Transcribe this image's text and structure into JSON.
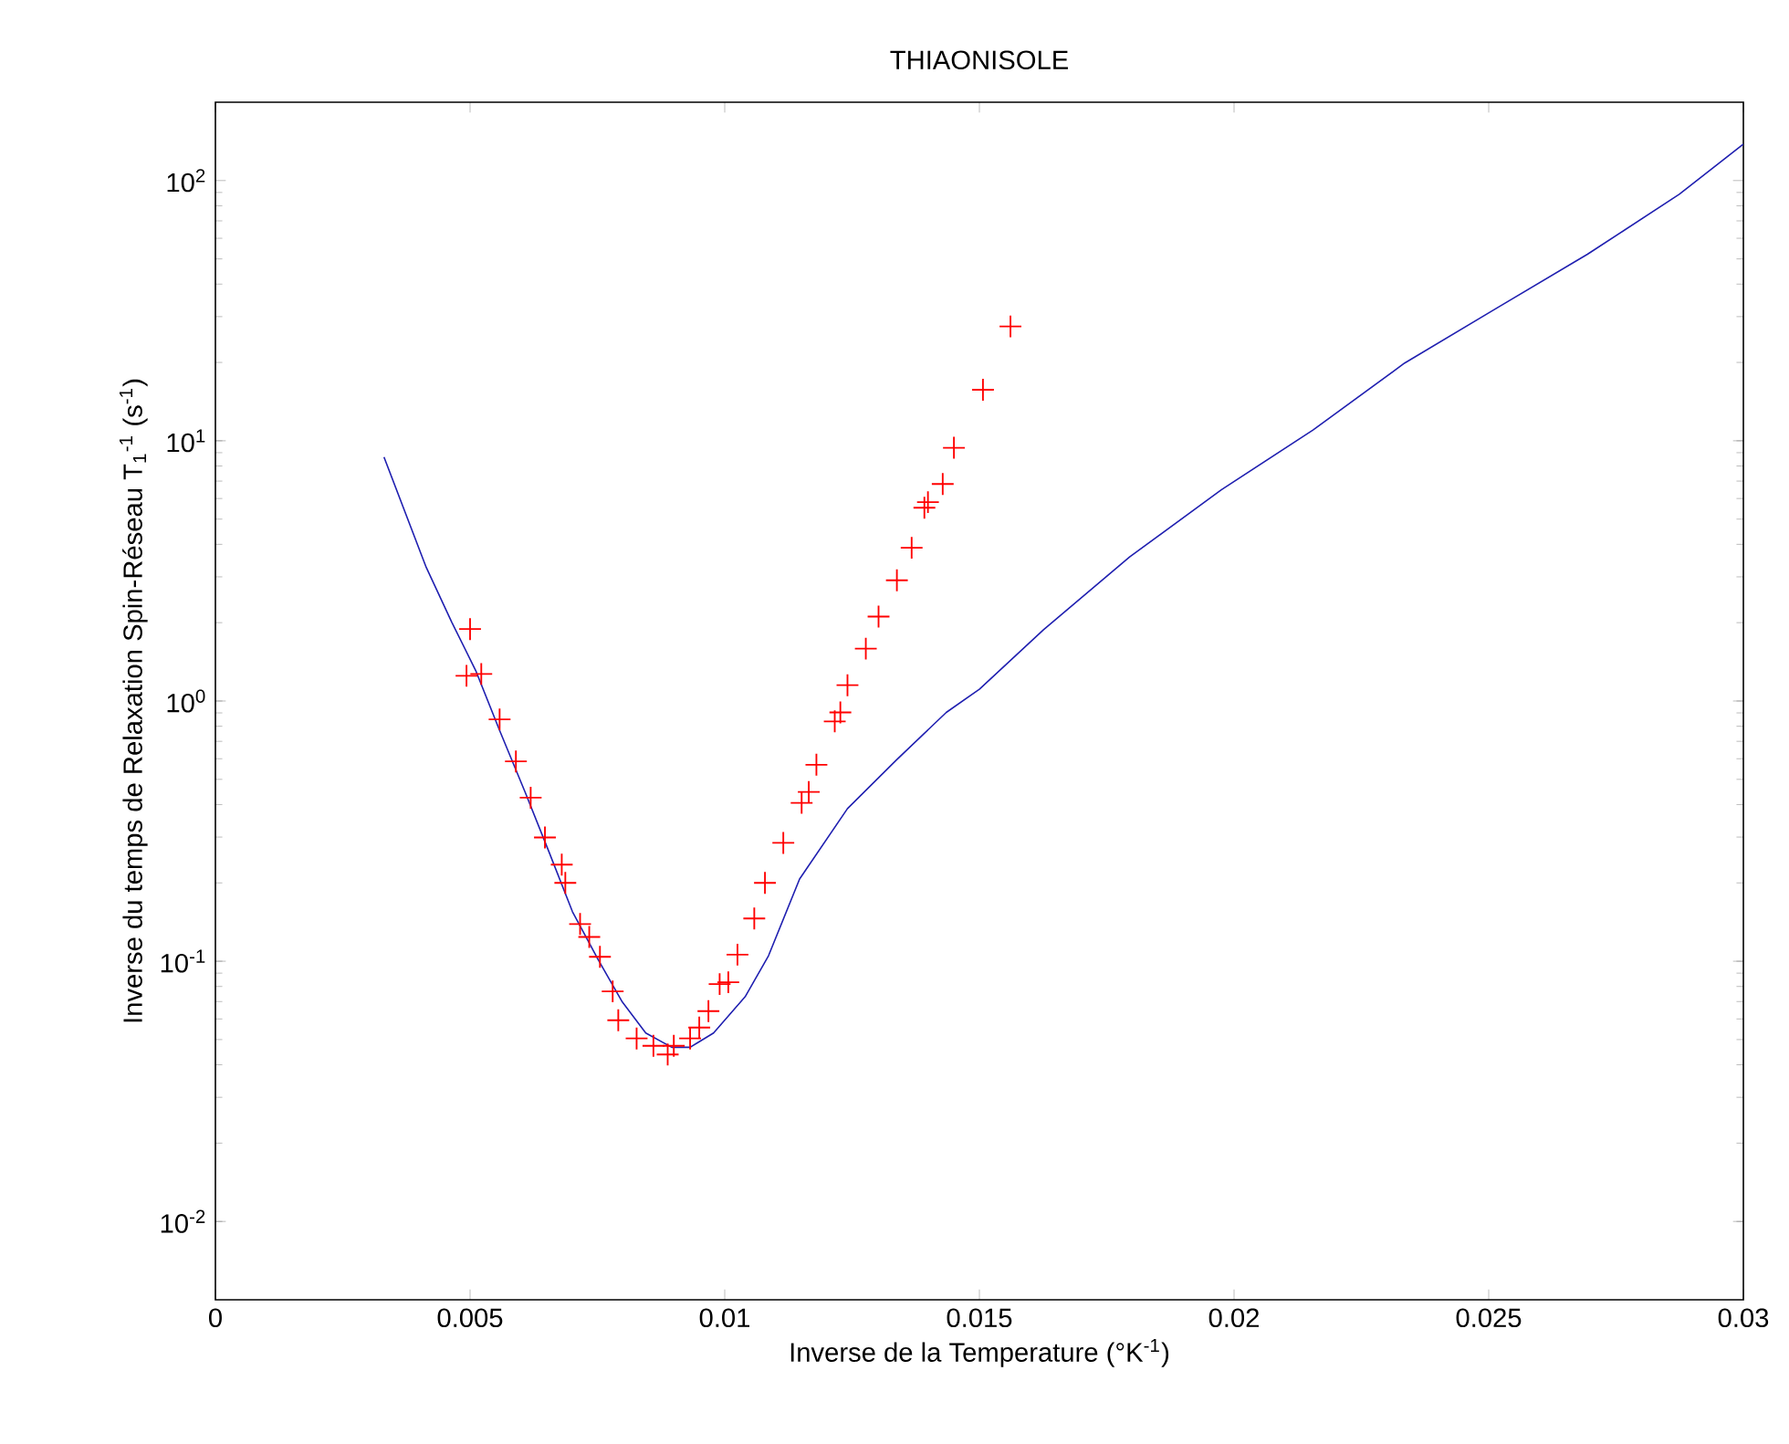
{
  "chart_data": {
    "type": "line",
    "title": "THIAONISOLE",
    "xlabel": "Inverse de la Temperature (°K$^{-1}$)",
    "ylabel": "Inverse du temps de Relaxation Spin-Réseau T$_{1}$$^{-1}$ (s$^{-1}$)",
    "log": "y",
    "xlim": [
      0,
      0.03
    ],
    "ylim": [
      0.005,
      200
    ],
    "xticks": [
      0,
      0.005,
      0.01,
      0.015,
      0.02,
      0.025,
      0.03
    ],
    "yticks": [
      {
        "value": 0.01,
        "label": "10$^{-2}$"
      },
      {
        "value": 0.1,
        "label": "10$^{-1}$"
      },
      {
        "value": 1,
        "label": "10$^{0}$"
      },
      {
        "value": 10,
        "label": "10$^{1}$"
      },
      {
        "value": 100,
        "label": "10$^{2}$"
      }
    ],
    "series": [
      {
        "color": "#1f1fb0",
        "marker": "none",
        "line_style": "solid",
        "x": [
          0.00331,
          0.00414,
          0.00464,
          0.00511,
          0.00558,
          0.00608,
          0.00655,
          0.00701,
          0.00752,
          0.00799,
          0.00845,
          0.00896,
          0.00932,
          0.00978,
          0.0104,
          0.01086,
          0.01147,
          0.01241,
          0.01338,
          0.01435,
          0.015,
          0.01626,
          0.01795,
          0.01975,
          0.02155,
          0.02335,
          0.02514,
          0.02694,
          0.02874,
          0.03
        ],
        "values": [
          8.66,
          3.26,
          2.01,
          1.31,
          0.771,
          0.447,
          0.263,
          0.155,
          0.101,
          0.0697,
          0.053,
          0.0467,
          0.0467,
          0.053,
          0.073,
          0.105,
          0.207,
          0.386,
          0.596,
          0.904,
          1.11,
          1.88,
          3.58,
          6.48,
          11.0,
          19.9,
          32.2,
          52.1,
          88.5,
          138
        ]
      },
      {
        "type": "scatter",
        "color": "#ff0000",
        "marker": "cross",
        "x": [
          0.005,
          0.00493,
          0.00522,
          0.00558,
          0.0059,
          0.00619,
          0.00647,
          0.0068,
          0.00687,
          0.00716,
          0.00734,
          0.00755,
          0.0078,
          0.00791,
          0.00827,
          0.0086,
          0.00888,
          0.009,
          0.00932,
          0.0095,
          0.00968,
          0.0099,
          0.01007,
          0.01025,
          0.01058,
          0.01079,
          0.01115,
          0.01151,
          0.01165,
          0.0118,
          0.01216,
          0.01227,
          0.01241,
          0.01277,
          0.01302,
          0.01338,
          0.01367,
          0.01392,
          0.01399,
          0.01428,
          0.0145,
          0.01507,
          0.01561
        ],
        "values": [
          1.89,
          1.25,
          1.27,
          0.85,
          0.586,
          0.425,
          0.299,
          0.235,
          0.2,
          0.139,
          0.124,
          0.104,
          0.0766,
          0.0593,
          0.0505,
          0.0473,
          0.0438,
          0.0473,
          0.0505,
          0.0556,
          0.0643,
          0.0817,
          0.083,
          0.106,
          0.146,
          0.2,
          0.285,
          0.406,
          0.447,
          0.569,
          0.835,
          0.904,
          1.15,
          1.59,
          2.11,
          2.91,
          3.88,
          5.53,
          5.81,
          6.82,
          9.4,
          15.7,
          27.5
        ]
      }
    ]
  }
}
